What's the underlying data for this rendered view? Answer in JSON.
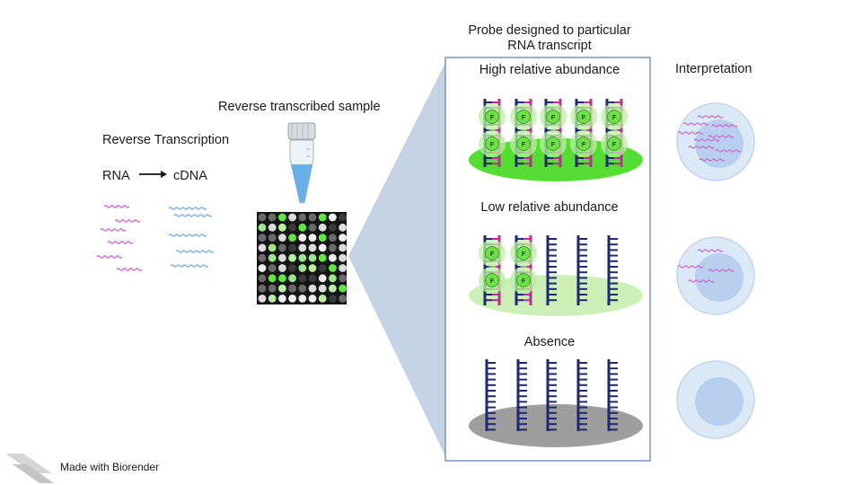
{
  "labels": {
    "reverse_transcription": "Reverse Transcription",
    "rna": "RNA",
    "cdna": "cDNA",
    "reverse_transcribed_sample": "Reverse transcribed sample",
    "probe_title_line1": "Probe designed to particular",
    "probe_title_line2": "RNA transcript",
    "high_abundance": "High relative abundance",
    "low_abundance": "Low relative abundance",
    "absence": "Absence",
    "interpretation": "Interpretation",
    "fluor_marker": "F",
    "credit": "Made with Biorender"
  },
  "colors": {
    "rna_strand": "#cc66cc",
    "cdna_strand": "#6fa8dc",
    "probe_backbone": "#1f2a6e",
    "probe_hybrid": "#b5338a",
    "fluor_bright": "#6ee04a",
    "fluor_glow": "#b8f0a0",
    "spot_high": "#55dd33",
    "spot_low": "#ccf0b8",
    "spot_absent": "#9e9e9e",
    "panel_border": "#8090c0",
    "zoom_wedge": "#c5d4e4",
    "cell_outer": "#dce9f6",
    "cell_nucleus": "#b8cff0"
  },
  "panels": {
    "high": {
      "hybridized_probes": 5,
      "total_probes": 5
    },
    "low": {
      "hybridized_probes": 2,
      "total_probes": 5
    },
    "absence": {
      "hybridized_probes": 0,
      "total_probes": 5
    }
  },
  "interpretation_cells": [
    {
      "transcript_copies": 9
    },
    {
      "transcript_copies": 4
    },
    {
      "transcript_copies": 0
    }
  ]
}
